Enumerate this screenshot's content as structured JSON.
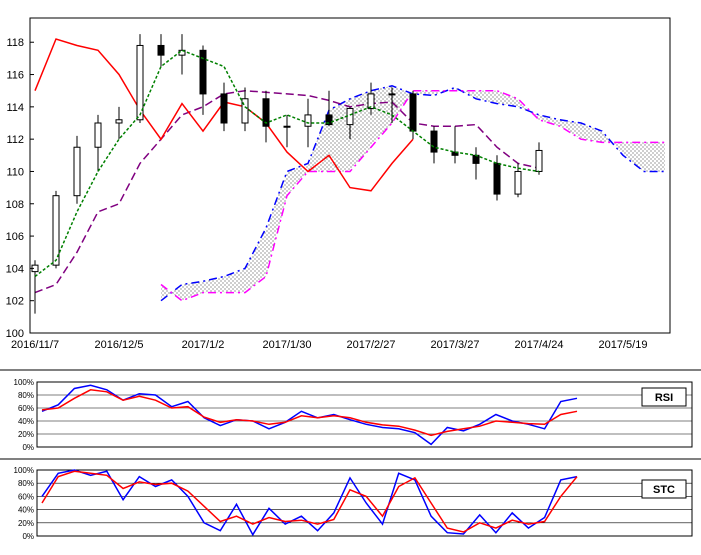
{
  "colors": {
    "tenkan": "#008000",
    "kijun": "#800080",
    "chikou": "#ff0000",
    "senkou_a": "#0000ff",
    "senkou_b": "#ff00ff",
    "candle": "#000000",
    "rsi_main": "#0000ff",
    "rsi_signal": "#ff0000",
    "stc_main": "#0000ff",
    "stc_signal": "#ff0000",
    "grid": "#000000"
  },
  "chart_data": [
    {
      "type": "ichimoku-candlestick",
      "title": "",
      "grid": false,
      "x_tick_labels": [
        "2016/11/7",
        "2016/12/5",
        "2017/1/2",
        "2017/1/30",
        "2017/2/27",
        "2017/3/27",
        "2017/4/24",
        "2017/5/19"
      ],
      "y_tick_labels": [
        "100",
        "102",
        "104",
        "106",
        "108",
        "110",
        "112",
        "114",
        "116",
        "118"
      ],
      "ylim": [
        100,
        119.5
      ],
      "x_dates": [
        "2016/11/7",
        "2016/11/14",
        "2016/11/21",
        "2016/11/28",
        "2016/12/5",
        "2016/12/12",
        "2016/12/19",
        "2016/12/26",
        "2017/1/2",
        "2017/1/9",
        "2017/1/16",
        "2017/1/23",
        "2017/1/30",
        "2017/2/6",
        "2017/2/13",
        "2017/2/20",
        "2017/2/27",
        "2017/3/6",
        "2017/3/13",
        "2017/3/20",
        "2017/3/27",
        "2017/4/3",
        "2017/4/10",
        "2017/4/17",
        "2017/4/24",
        "2017/5/1",
        "2017/5/8",
        "2017/5/15",
        "2017/5/19",
        "2017/5/26",
        "2017/6/2"
      ],
      "tenkan_sen": [
        103.5,
        104.5,
        107.5,
        110.0,
        112.0,
        113.5,
        116.5,
        117.5,
        117.0,
        116.5,
        114.0,
        113.0,
        113.5,
        113.0,
        113.0,
        113.5,
        114.0,
        113.5,
        112.5,
        111.5,
        111.2,
        111.0,
        110.5,
        110.2,
        110.0
      ],
      "kijun_sen": [
        102.5,
        103.0,
        105.0,
        107.5,
        108.0,
        110.5,
        112.0,
        113.5,
        114.0,
        114.8,
        115.0,
        114.9,
        114.8,
        114.7,
        114.4,
        114.0,
        114.2,
        114.3,
        113.0,
        112.8,
        112.8,
        112.9,
        111.5,
        110.5,
        110.2
      ],
      "chikou_span": [
        115.0,
        118.2,
        117.8,
        117.5,
        116.0,
        113.8,
        112.0,
        114.2,
        112.5,
        114.3,
        114.0,
        113.0,
        111.2,
        110.0,
        111.0,
        109.0,
        108.8,
        110.5,
        112.0
      ],
      "senkou_span_a": [
        102.0,
        103.0,
        103.2,
        103.5,
        104.0,
        106.5,
        110.0,
        110.5,
        113.8,
        114.5,
        115.0,
        115.3,
        114.8,
        114.7,
        115.2,
        114.5,
        114.2,
        114.0,
        113.5,
        113.2,
        113.0,
        112.5,
        111.0,
        110.0,
        110.0
      ],
      "senkou_span_b": [
        103.0,
        102.0,
        102.5,
        102.5,
        102.5,
        103.5,
        108.5,
        110.0,
        110.0,
        110.0,
        111.5,
        113.0,
        115.0,
        115.0,
        115.0,
        115.0,
        115.0,
        114.5,
        113.2,
        112.8,
        112.0,
        111.8,
        111.8,
        111.8,
        111.8
      ],
      "candles": [
        {
          "o": 103.8,
          "h": 104.5,
          "l": 101.2,
          "c": 104.2
        },
        {
          "o": 104.2,
          "h": 108.8,
          "l": 104.0,
          "c": 108.5
        },
        {
          "o": 108.5,
          "h": 112.2,
          "l": 108.0,
          "c": 111.5
        },
        {
          "o": 111.5,
          "h": 113.5,
          "l": 110.0,
          "c": 113.0
        },
        {
          "o": 113.0,
          "h": 114.0,
          "l": 112.0,
          "c": 113.2
        },
        {
          "o": 113.2,
          "h": 118.5,
          "l": 113.0,
          "c": 117.8
        },
        {
          "o": 117.8,
          "h": 118.5,
          "l": 116.5,
          "c": 117.2
        },
        {
          "o": 117.2,
          "h": 118.5,
          "l": 116.0,
          "c": 117.5
        },
        {
          "o": 117.5,
          "h": 117.8,
          "l": 113.5,
          "c": 114.8
        },
        {
          "o": 114.8,
          "h": 115.5,
          "l": 112.5,
          "c": 113.0
        },
        {
          "o": 113.0,
          "h": 115.2,
          "l": 112.5,
          "c": 114.5
        },
        {
          "o": 114.5,
          "h": 115.0,
          "l": 111.8,
          "c": 112.8
        },
        {
          "o": 112.8,
          "h": 113.5,
          "l": 111.5,
          "c": 112.8
        },
        {
          "o": 112.8,
          "h": 114.5,
          "l": 111.5,
          "c": 113.5
        },
        {
          "o": 113.5,
          "h": 115.0,
          "l": 112.8,
          "c": 112.9
        },
        {
          "o": 112.9,
          "h": 114.0,
          "l": 112.0,
          "c": 113.9
        },
        {
          "o": 113.9,
          "h": 115.5,
          "l": 113.5,
          "c": 114.8
        },
        {
          "o": 114.8,
          "h": 115.2,
          "l": 113.0,
          "c": 114.8
        },
        {
          "o": 114.8,
          "h": 115.0,
          "l": 112.0,
          "c": 112.5
        },
        {
          "o": 112.5,
          "h": 112.8,
          "l": 110.5,
          "c": 111.2
        },
        {
          "o": 111.2,
          "h": 112.8,
          "l": 110.5,
          "c": 111.0
        },
        {
          "o": 111.0,
          "h": 111.5,
          "l": 109.5,
          "c": 110.5
        },
        {
          "o": 110.5,
          "h": 111.0,
          "l": 108.2,
          "c": 108.6
        },
        {
          "o": 108.6,
          "h": 110.5,
          "l": 108.4,
          "c": 110.0
        },
        {
          "o": 110.0,
          "h": 111.8,
          "l": 109.8,
          "c": 111.3
        }
      ]
    },
    {
      "type": "line",
      "title": "RSI",
      "grid": true,
      "y_tick_labels": [
        "100%",
        "80%",
        "60%",
        "40%",
        "20%",
        "0%"
      ],
      "ylim": [
        0,
        100
      ],
      "series": [
        {
          "name": "RSI",
          "values": [
            55,
            65,
            90,
            95,
            88,
            72,
            82,
            80,
            62,
            70,
            45,
            33,
            42,
            40,
            28,
            38,
            55,
            45,
            50,
            42,
            35,
            30,
            28,
            22,
            4,
            30,
            25,
            35,
            50,
            40,
            35,
            28,
            70,
            75
          ]
        },
        {
          "name": "",
          "values": [
            57,
            60,
            75,
            88,
            85,
            72,
            78,
            72,
            60,
            62,
            46,
            38,
            42,
            40,
            35,
            38,
            48,
            45,
            48,
            45,
            38,
            34,
            32,
            26,
            18,
            24,
            28,
            32,
            40,
            38,
            36,
            35,
            50,
            55
          ]
        }
      ]
    },
    {
      "type": "line",
      "title": "STC",
      "grid": true,
      "y_tick_labels": [
        "100%",
        "80%",
        "60%",
        "40%",
        "20%",
        "0%"
      ],
      "ylim": [
        0,
        100
      ],
      "series": [
        {
          "name": "STC",
          "values": [
            60,
            95,
            100,
            92,
            98,
            55,
            90,
            75,
            85,
            60,
            20,
            8,
            48,
            2,
            42,
            18,
            30,
            8,
            35,
            88,
            50,
            18,
            95,
            85,
            30,
            5,
            3,
            32,
            5,
            35,
            12,
            28,
            85,
            90
          ]
        },
        {
          "name": "",
          "values": [
            50,
            90,
            98,
            95,
            92,
            72,
            82,
            78,
            80,
            68,
            45,
            22,
            30,
            18,
            28,
            22,
            24,
            18,
            25,
            70,
            60,
            30,
            75,
            88,
            50,
            12,
            6,
            20,
            12,
            24,
            18,
            22,
            60,
            90
          ]
        }
      ]
    }
  ]
}
